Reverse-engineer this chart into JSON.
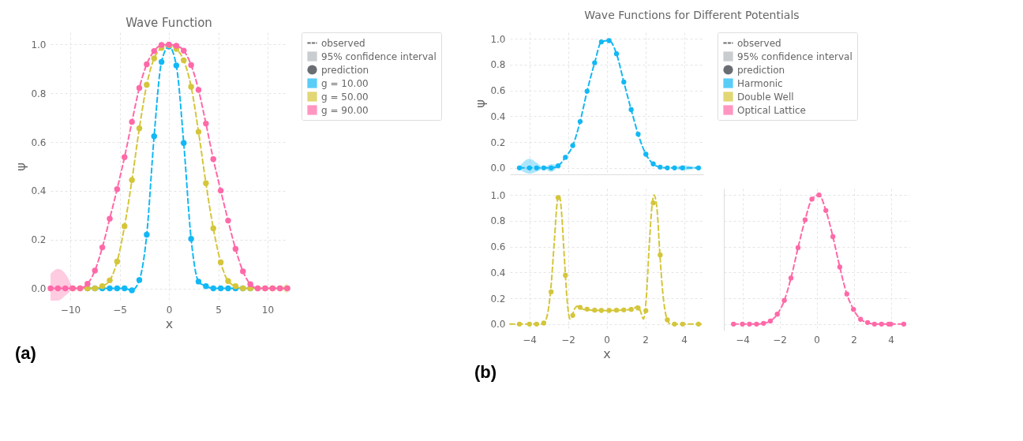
{
  "chart_data": [
    {
      "type": "line",
      "title": "Wave Function",
      "xlabel": "x",
      "ylabel": "ψ",
      "annotations": [
        "(a)"
      ],
      "legend": "top right",
      "grid": true,
      "line_style": "dashed",
      "xlim": [
        -12,
        12
      ],
      "ylim": [
        -0.05,
        1.05
      ],
      "xticks": [
        {
          "value": -10,
          "label": "−10"
        },
        {
          "value": -5,
          "label": "−5"
        },
        0,
        5,
        10
      ],
      "yticks": [
        {
          "value": 0,
          "label": "0.0"
        },
        {
          "value": 0.2,
          "label": "0.2"
        },
        {
          "value": 0.4,
          "label": "0.4"
        },
        {
          "value": 0.6,
          "label": "0.6"
        },
        {
          "value": 0.8,
          "label": "0.8"
        },
        {
          "value": 1,
          "label": "1.0"
        }
      ],
      "x": [
        -12,
        -11.25,
        -10.5,
        -9.75,
        -9,
        -8.25,
        -7.5,
        -6.75,
        -6,
        -5.25,
        -4.5,
        -3.75,
        -3,
        -2.25,
        -1.5,
        -0.75,
        0,
        0.75,
        1.5,
        2.25,
        3,
        3.75,
        4.5,
        5.25,
        6,
        6.75,
        7.5,
        8.25,
        9,
        9.75,
        10.5,
        11.25,
        12
      ],
      "series": [
        {
          "name": "observed",
          "type": "line",
          "color": "#333333",
          "values": [
            null,
            null,
            null,
            null,
            null,
            null,
            null,
            null,
            null,
            null,
            null,
            null,
            null,
            null,
            null,
            null,
            null,
            null,
            null,
            null,
            null,
            null,
            null,
            null,
            null,
            null,
            null,
            null,
            null,
            null,
            null,
            null,
            null
          ]
        },
        {
          "name": "95% confidence interval",
          "type": "area",
          "color": "#b4b8bc",
          "values": [
            null,
            null,
            null,
            null,
            null,
            null,
            null,
            null,
            null,
            null,
            null,
            null,
            null,
            null,
            null,
            null,
            null,
            null,
            null,
            null,
            null,
            null,
            null,
            null,
            null,
            null,
            null,
            null,
            null,
            null,
            null,
            null,
            null
          ]
        },
        {
          "name": "prediction",
          "type": "scatter",
          "color": "#2b2f36",
          "values": [
            null,
            null,
            null,
            null,
            null,
            null,
            null,
            null,
            null,
            null,
            null,
            null,
            null,
            null,
            null,
            null,
            null,
            null,
            null,
            null,
            null,
            null,
            null,
            null,
            null,
            null,
            null,
            null,
            null,
            null,
            null,
            null,
            null
          ]
        },
        {
          "name": "g = 10.00",
          "color": "#12b8f5",
          "marker": "circle",
          "values": [
            null,
            null,
            null,
            null,
            null,
            0,
            0,
            0,
            0,
            0,
            0,
            -0.008,
            0.034,
            0.22,
            0.624,
            0.929,
            0.992,
            0.914,
            0.596,
            0.203,
            0.028,
            0.009,
            0,
            0,
            0,
            0,
            0,
            0,
            null,
            null,
            null,
            null,
            null
          ]
        },
        {
          "name": "g = 50.00",
          "color": "#d4c63a",
          "marker": "circle",
          "values": [
            null,
            null,
            null,
            0,
            0,
            0,
            0,
            0.009,
            0.033,
            0.11,
            0.255,
            0.444,
            0.656,
            0.835,
            0.943,
            0.986,
            0.997,
            0.982,
            0.935,
            0.827,
            0.642,
            0.431,
            0.246,
            0.107,
            0.03,
            0.009,
            0,
            0,
            0,
            0,
            0,
            0,
            0
          ],
          "lower": [
            null,
            null,
            null,
            null,
            null,
            null,
            null,
            null,
            null,
            null,
            null,
            null,
            null,
            null,
            null,
            null,
            null,
            null,
            null,
            null,
            null,
            null,
            null,
            null,
            null,
            null,
            null,
            null,
            null,
            null,
            null,
            0,
            -0.02
          ],
          "upper": [
            null,
            null,
            null,
            null,
            null,
            null,
            null,
            null,
            null,
            null,
            null,
            null,
            null,
            null,
            null,
            null,
            null,
            null,
            null,
            null,
            null,
            null,
            null,
            null,
            null,
            null,
            null,
            null,
            null,
            null,
            null,
            0,
            0.02
          ]
        },
        {
          "name": "g = 90.00",
          "color": "#ff69a8",
          "marker": "circle",
          "values": [
            0,
            0,
            0,
            0,
            0,
            0.019,
            0.073,
            0.168,
            0.286,
            0.407,
            0.538,
            0.683,
            0.822,
            0.919,
            0.973,
            0.998,
            1.0,
            0.995,
            0.975,
            0.916,
            0.814,
            0.676,
            0.53,
            0.401,
            0.278,
            0.162,
            0.07,
            0.017,
            0,
            0,
            0,
            0,
            0
          ],
          "lower": [
            -0.05,
            -0.05,
            -0.03,
            0,
            null,
            null,
            null,
            null,
            null,
            null,
            null,
            null,
            null,
            null,
            null,
            null,
            null,
            null,
            null,
            null,
            null,
            null,
            null,
            null,
            null,
            null,
            null,
            null,
            null,
            null,
            null,
            null,
            null
          ],
          "upper": [
            0.06,
            0.08,
            0.06,
            0,
            null,
            null,
            null,
            null,
            null,
            null,
            null,
            null,
            null,
            null,
            null,
            null,
            null,
            null,
            null,
            null,
            null,
            null,
            null,
            null,
            null,
            null,
            null,
            null,
            null,
            null,
            null,
            null,
            null
          ]
        }
      ]
    },
    {
      "type": "line",
      "title": "Wave Functions for Different Potentials",
      "ylabel": "ψ",
      "annotations": [
        "(b)"
      ],
      "legend": "top right",
      "grid": true,
      "line_style": "dashed",
      "tick_labels": "y",
      "xlim": [
        -5,
        5
      ],
      "ylim": [
        -0.05,
        1.05
      ],
      "xticks": [
        {
          "value": -4,
          "label": null
        },
        {
          "value": -2,
          "label": null
        },
        {
          "value": 0,
          "label": null
        },
        {
          "value": 2,
          "label": null
        },
        {
          "value": 4,
          "label": null
        }
      ],
      "yticks": [
        {
          "value": 0,
          "label": "0.0"
        },
        {
          "value": 0.2,
          "label": "0.2"
        },
        {
          "value": 0.4,
          "label": "0.4"
        },
        {
          "value": 0.6,
          "label": "0.6"
        },
        {
          "value": 0.8,
          "label": "0.8"
        },
        {
          "value": 1,
          "label": "1.0"
        }
      ],
      "x": [
        -4.51,
        -3.99,
        -3.62,
        -3.25,
        -2.87,
        -2.51,
        -2.13,
        -1.75,
        -1.37,
        -1.01,
        -0.62,
        -0.27,
        0.13,
        0.51,
        0.89,
        1.27,
        1.63,
        2.03,
        2.41,
        2.77,
        3.14,
        3.51,
        3.93,
        4.75
      ],
      "series": [
        {
          "name": "observed",
          "type": "line",
          "color": "#333333",
          "values": [
            null,
            null,
            null,
            null,
            null,
            null,
            null,
            null,
            null,
            null,
            null,
            null,
            null,
            null,
            null,
            null,
            null,
            null,
            null,
            null,
            null,
            null,
            null,
            null
          ]
        },
        {
          "name": "95% confidence interval",
          "type": "area",
          "color": "#b4b8bc",
          "values": [
            null,
            null,
            null,
            null,
            null,
            null,
            null,
            null,
            null,
            null,
            null,
            null,
            null,
            null,
            null,
            null,
            null,
            null,
            null,
            null,
            null,
            null,
            null,
            null
          ]
        },
        {
          "name": "prediction",
          "type": "scatter",
          "color": "#2b2f36",
          "values": [
            null,
            null,
            null,
            null,
            null,
            null,
            null,
            null,
            null,
            null,
            null,
            null,
            null,
            null,
            null,
            null,
            null,
            null,
            null,
            null,
            null,
            null,
            null,
            null
          ]
        },
        {
          "name": "Harmonic",
          "color": "#12b8f5",
          "marker": "circle",
          "values": [
            0,
            0,
            0,
            0,
            0,
            0.016,
            0.082,
            0.173,
            0.359,
            0.594,
            0.814,
            0.976,
            0.986,
            0.884,
            0.665,
            0.451,
            0.261,
            0.106,
            0.031,
            0.006,
            0,
            0,
            0,
            0
          ],
          "lower": [
            -0.01,
            -0.045,
            -0.03,
            -0.005,
            -0.03,
            0.01,
            null,
            null,
            null,
            null,
            null,
            null,
            null,
            null,
            null,
            null,
            null,
            null,
            null,
            null,
            null,
            0,
            -0.02,
            0
          ],
          "upper": [
            0.01,
            0.07,
            0.04,
            0.005,
            0.03,
            0.02,
            null,
            null,
            null,
            null,
            null,
            null,
            null,
            null,
            null,
            null,
            null,
            null,
            null,
            null,
            null,
            0,
            0.02,
            0
          ]
        },
        {
          "name": "Double Well",
          "color": "#d4c63a",
          "marker": "circle",
          "values": [
            null,
            null,
            null,
            null,
            null,
            null,
            null,
            null,
            null,
            null,
            null,
            null,
            null,
            null,
            null,
            null,
            null,
            null,
            null,
            null,
            null,
            null,
            null,
            null
          ]
        },
        {
          "name": "Optical Lattice",
          "color": "#ff69a8",
          "marker": "circle",
          "values": [
            null,
            null,
            null,
            null,
            null,
            null,
            null,
            null,
            null,
            null,
            null,
            null,
            null,
            null,
            null,
            null,
            null,
            null,
            null,
            null,
            null,
            null,
            null,
            null
          ]
        }
      ]
    },
    {
      "type": "line",
      "xlabel": "x",
      "grid": true,
      "line_style": "dashed",
      "xlim": [
        -5,
        5
      ],
      "ylim": [
        -0.05,
        1.05
      ],
      "xticks": [
        {
          "value": -4,
          "label": "−4"
        },
        {
          "value": -2,
          "label": "−2"
        },
        0,
        2,
        4
      ],
      "yticks": [
        {
          "value": 0,
          "label": "0.0"
        },
        {
          "value": 0.2,
          "label": "0.2"
        },
        {
          "value": 0.4,
          "label": "0.4"
        },
        {
          "value": 0.6,
          "label": "0.6"
        },
        {
          "value": 0.8,
          "label": "0.8"
        },
        {
          "value": 1,
          "label": "1.0"
        }
      ],
      "series": [
        {
          "color": "#d4c63a",
          "x": [
            -5,
            -3.3,
            -3.1,
            -2.9,
            -2.7,
            -2.55,
            -2.45,
            -2.35,
            -2.2,
            -2.05,
            -1.9,
            -1.8,
            -1.65,
            -1.5,
            -1.3,
            -1,
            0,
            1,
            1.4,
            1.6,
            1.75,
            1.9,
            2.05,
            2.2,
            2.35,
            2.45,
            2.6,
            2.75,
            2.9,
            3.1,
            3.3,
            5
          ],
          "values": [
            0,
            0,
            0.05,
            0.25,
            0.65,
            0.95,
            1.0,
            0.9,
            0.55,
            0.2,
            0.04,
            0.06,
            0.12,
            0.14,
            0.12,
            0.11,
            0.105,
            0.11,
            0.12,
            0.14,
            0.1,
            0.04,
            0.2,
            0.6,
            0.92,
            1.0,
            0.9,
            0.55,
            0.25,
            0.05,
            0,
            0
          ]
        },
        {
          "type": "scatter",
          "color": "#d4c63a",
          "x": [
            -4.51,
            -3.99,
            -3.62,
            -3.25,
            -2.87,
            -2.51,
            -2.13,
            -1.75,
            -1.37,
            -1.01,
            -0.62,
            -0.27,
            0.13,
            0.51,
            0.89,
            1.27,
            1.63,
            2.03,
            2.41,
            2.77,
            3.14,
            3.51,
            3.93,
            4.75
          ],
          "values": [
            0,
            0,
            0,
            0.008,
            0.25,
            0.98,
            0.378,
            0.067,
            0.13,
            0.116,
            0.108,
            0.106,
            0.106,
            0.108,
            0.11,
            0.114,
            0.124,
            0.104,
            0.939,
            0.535,
            0.033,
            0,
            0,
            0
          ]
        }
      ]
    },
    {
      "type": "line",
      "grid": true,
      "line_style": "dashed",
      "tick_labels": "x",
      "xlim": [
        -5,
        5
      ],
      "ylim": [
        -0.05,
        1.05
      ],
      "xticks": [
        {
          "value": -4,
          "label": "−4"
        },
        {
          "value": -2,
          "label": "−2"
        },
        0,
        2,
        4
      ],
      "yticks": [
        {
          "value": 0,
          "label": null
        },
        {
          "value": 0.2,
          "label": null
        },
        {
          "value": 0.4,
          "label": null
        },
        {
          "value": 0.6,
          "label": null
        },
        {
          "value": 0.8,
          "label": null
        },
        {
          "value": 1,
          "label": null
        }
      ],
      "series": [
        {
          "color": "#ff69a8",
          "marker": "circle",
          "x": [
            -4.48,
            -4,
            -3.62,
            -3.24,
            -2.86,
            -2.49,
            -2.12,
            -1.74,
            -1.38,
            -1,
            -0.62,
            -0.25,
            0.13,
            0.5,
            0.88,
            1.25,
            1.63,
            1.99,
            2.37,
            2.75,
            3.12,
            3.5,
            3.89,
            4,
            4.7
          ],
          "values": [
            0,
            0,
            0,
            0,
            0.006,
            0.024,
            0.077,
            0.183,
            0.357,
            0.592,
            0.807,
            0.968,
            1.0,
            0.88,
            0.677,
            0.442,
            0.233,
            0.114,
            0.037,
            0.012,
            0,
            0,
            0,
            0,
            0
          ]
        }
      ]
    }
  ]
}
